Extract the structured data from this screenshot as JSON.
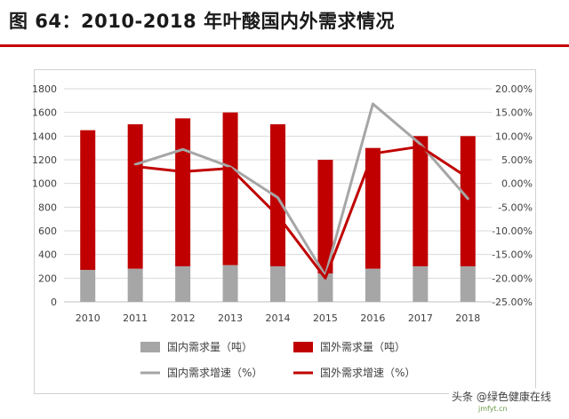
{
  "title": "图 64：2010-2018 年叶酸国内外需求情况",
  "watermark": "头条 @绿色健康在线",
  "watermark_sub": "jmfyt.cn",
  "colors": {
    "domestic_bar": "#a6a6a6",
    "foreign_bar": "#c00000",
    "domestic_line": "#a6a6a6",
    "foreign_line": "#c00000",
    "rule": "#c40000"
  },
  "chart_data": {
    "type": "bar",
    "categories": [
      "2010",
      "2011",
      "2012",
      "2013",
      "2014",
      "2015",
      "2016",
      "2017",
      "2018"
    ],
    "series": [
      {
        "name": "国内需求量（吨）",
        "kind": "bar",
        "axis": "left",
        "stack": "total",
        "values": [
          270,
          280,
          300,
          310,
          300,
          240,
          280,
          300,
          300
        ]
      },
      {
        "name": "国外需求量（吨）",
        "kind": "bar",
        "axis": "left",
        "stack": "total",
        "values": [
          1180,
          1220,
          1250,
          1290,
          1200,
          960,
          1020,
          1100,
          1100
        ]
      },
      {
        "name": "国内需求增速（%）",
        "kind": "line",
        "axis": "right",
        "values": [
          null,
          4.0,
          7.2,
          3.5,
          -3.0,
          -19.5,
          16.8,
          8.3,
          -3.2
        ]
      },
      {
        "name": "国外需求增速（%）",
        "kind": "line",
        "axis": "right",
        "values": [
          null,
          3.6,
          2.5,
          3.2,
          -6.8,
          -20.0,
          6.3,
          7.8,
          1.2
        ]
      }
    ],
    "y_left": {
      "min": 0,
      "max": 1800,
      "step": 200,
      "ticks": [
        "0",
        "200",
        "400",
        "600",
        "800",
        "1000",
        "1200",
        "1400",
        "1600",
        "1800"
      ]
    },
    "y_right": {
      "min": -25,
      "max": 20,
      "step": 5,
      "ticks": [
        "-25.00%",
        "-20.00%",
        "-15.00%",
        "-10.00%",
        "-5.00%",
        "0.00%",
        "5.00%",
        "10.00%",
        "15.00%",
        "20.00%"
      ]
    },
    "grid": true,
    "legend": "bottom"
  }
}
